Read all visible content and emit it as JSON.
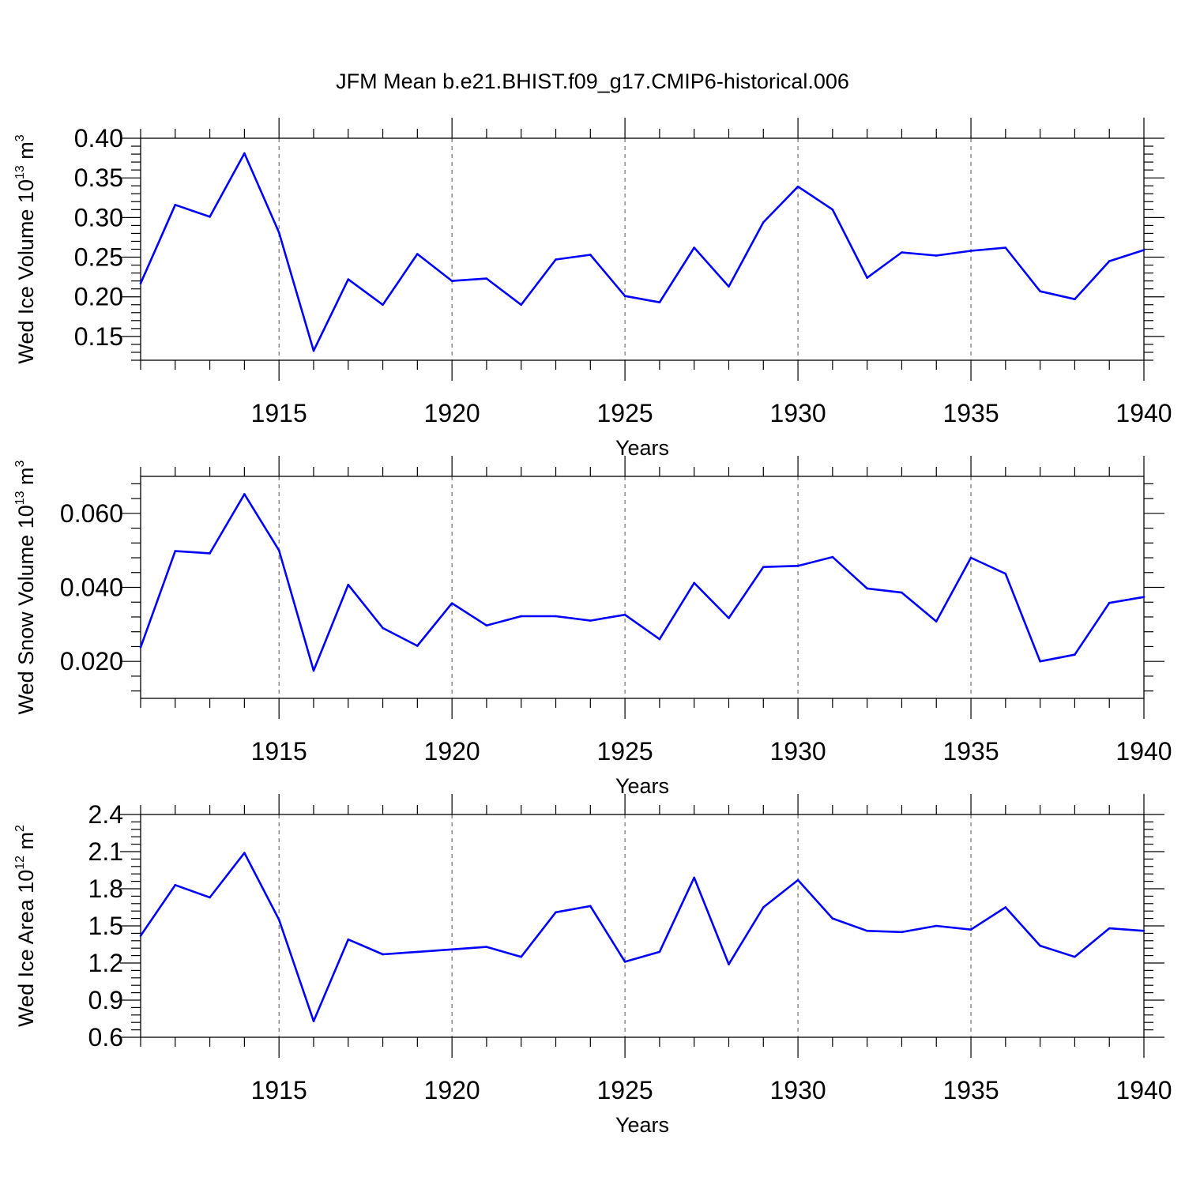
{
  "title": "JFM Mean b.e21.BHIST.f09_g17.CMIP6-historical.006",
  "colors": {
    "series": "#0000ff",
    "axes": "#000000",
    "grid": "#555555"
  },
  "chart_data": [
    {
      "type": "line",
      "ylabel_main": "Wed Ice Volume 10",
      "ylabel_exp": "13",
      "ylabel_unit": " m",
      "ylabel_unit_exp": "3",
      "xlabel": "Years",
      "xlim": [
        1911,
        1940
      ],
      "ylim": [
        0.12,
        0.4
      ],
      "yticks": [
        0.15,
        0.2,
        0.25,
        0.3,
        0.35,
        0.4
      ],
      "ytick_labels": [
        "0.15",
        "0.20",
        "0.25",
        "0.30",
        "0.35",
        "0.40"
      ],
      "xticks": [
        1915,
        1920,
        1925,
        1930,
        1935,
        1940
      ],
      "xtick_labels": [
        "1915",
        "1920",
        "1925",
        "1930",
        "1935",
        "1940"
      ],
      "grid": "dashed vertical at major x ticks",
      "x": [
        1911,
        1912,
        1913,
        1914,
        1915,
        1916,
        1917,
        1918,
        1919,
        1920,
        1921,
        1922,
        1923,
        1924,
        1925,
        1926,
        1927,
        1928,
        1929,
        1930,
        1931,
        1932,
        1933,
        1934,
        1935,
        1936,
        1937,
        1938,
        1939,
        1940
      ],
      "series": [
        {
          "values": [
            0.217,
            0.316,
            0.301,
            0.381,
            0.281,
            0.132,
            0.222,
            0.19,
            0.254,
            0.22,
            0.223,
            0.19,
            0.247,
            0.253,
            0.201,
            0.193,
            0.262,
            0.213,
            0.294,
            0.339,
            0.31,
            0.224,
            0.256,
            0.252,
            0.258,
            0.262,
            0.207,
            0.197,
            0.245,
            0.259
          ]
        }
      ]
    },
    {
      "type": "line",
      "ylabel_main": "Wed Snow Volume 10",
      "ylabel_exp": "13",
      "ylabel_unit": " m",
      "ylabel_unit_exp": "3",
      "xlabel": "Years",
      "xlim": [
        1911,
        1940
      ],
      "ylim": [
        0.01,
        0.07
      ],
      "yticks": [
        0.02,
        0.04,
        0.06
      ],
      "ytick_labels": [
        "0.020",
        "0.040",
        "0.060"
      ],
      "xticks": [
        1915,
        1920,
        1925,
        1930,
        1935,
        1940
      ],
      "xtick_labels": [
        "1915",
        "1920",
        "1925",
        "1930",
        "1935",
        "1940"
      ],
      "grid": "dashed vertical at major x ticks",
      "x": [
        1911,
        1912,
        1913,
        1914,
        1915,
        1916,
        1917,
        1918,
        1919,
        1920,
        1921,
        1922,
        1923,
        1924,
        1925,
        1926,
        1927,
        1928,
        1929,
        1930,
        1931,
        1932,
        1933,
        1934,
        1935,
        1936,
        1937,
        1938,
        1939,
        1940
      ],
      "series": [
        {
          "values": [
            0.0238,
            0.0498,
            0.0492,
            0.0652,
            0.05,
            0.0175,
            0.0407,
            0.029,
            0.0242,
            0.0357,
            0.0297,
            0.0322,
            0.0322,
            0.031,
            0.0326,
            0.026,
            0.0412,
            0.0317,
            0.0455,
            0.0458,
            0.0482,
            0.0397,
            0.0386,
            0.0308,
            0.048,
            0.0437,
            0.02,
            0.0218,
            0.0358,
            0.0374
          ]
        }
      ]
    },
    {
      "type": "line",
      "ylabel_main": "Wed Ice Area 10",
      "ylabel_exp": "12",
      "ylabel_unit": " m",
      "ylabel_unit_exp": "2",
      "xlabel": "Years",
      "xlim": [
        1911,
        1940
      ],
      "ylim": [
        0.6,
        2.4
      ],
      "yticks": [
        0.6,
        0.9,
        1.2,
        1.5,
        1.8,
        2.1,
        2.4
      ],
      "ytick_labels": [
        "0.6",
        "0.9",
        "1.2",
        "1.5",
        "1.8",
        "2.1",
        "2.4"
      ],
      "xticks": [
        1915,
        1920,
        1925,
        1930,
        1935,
        1940
      ],
      "xtick_labels": [
        "1915",
        "1920",
        "1925",
        "1930",
        "1935",
        "1940"
      ],
      "grid": "dashed vertical at major x ticks",
      "x": [
        1911,
        1912,
        1913,
        1914,
        1915,
        1916,
        1917,
        1918,
        1919,
        1920,
        1921,
        1922,
        1923,
        1924,
        1925,
        1926,
        1927,
        1928,
        1929,
        1930,
        1931,
        1932,
        1933,
        1934,
        1935,
        1936,
        1937,
        1938,
        1939,
        1940
      ],
      "series": [
        {
          "values": [
            1.42,
            1.83,
            1.73,
            2.09,
            1.55,
            0.73,
            1.39,
            1.27,
            1.29,
            1.31,
            1.33,
            1.25,
            1.61,
            1.66,
            1.21,
            1.29,
            1.89,
            1.19,
            1.65,
            1.87,
            1.56,
            1.46,
            1.45,
            1.5,
            1.47,
            1.65,
            1.34,
            1.25,
            1.48,
            1.46
          ]
        }
      ]
    }
  ]
}
